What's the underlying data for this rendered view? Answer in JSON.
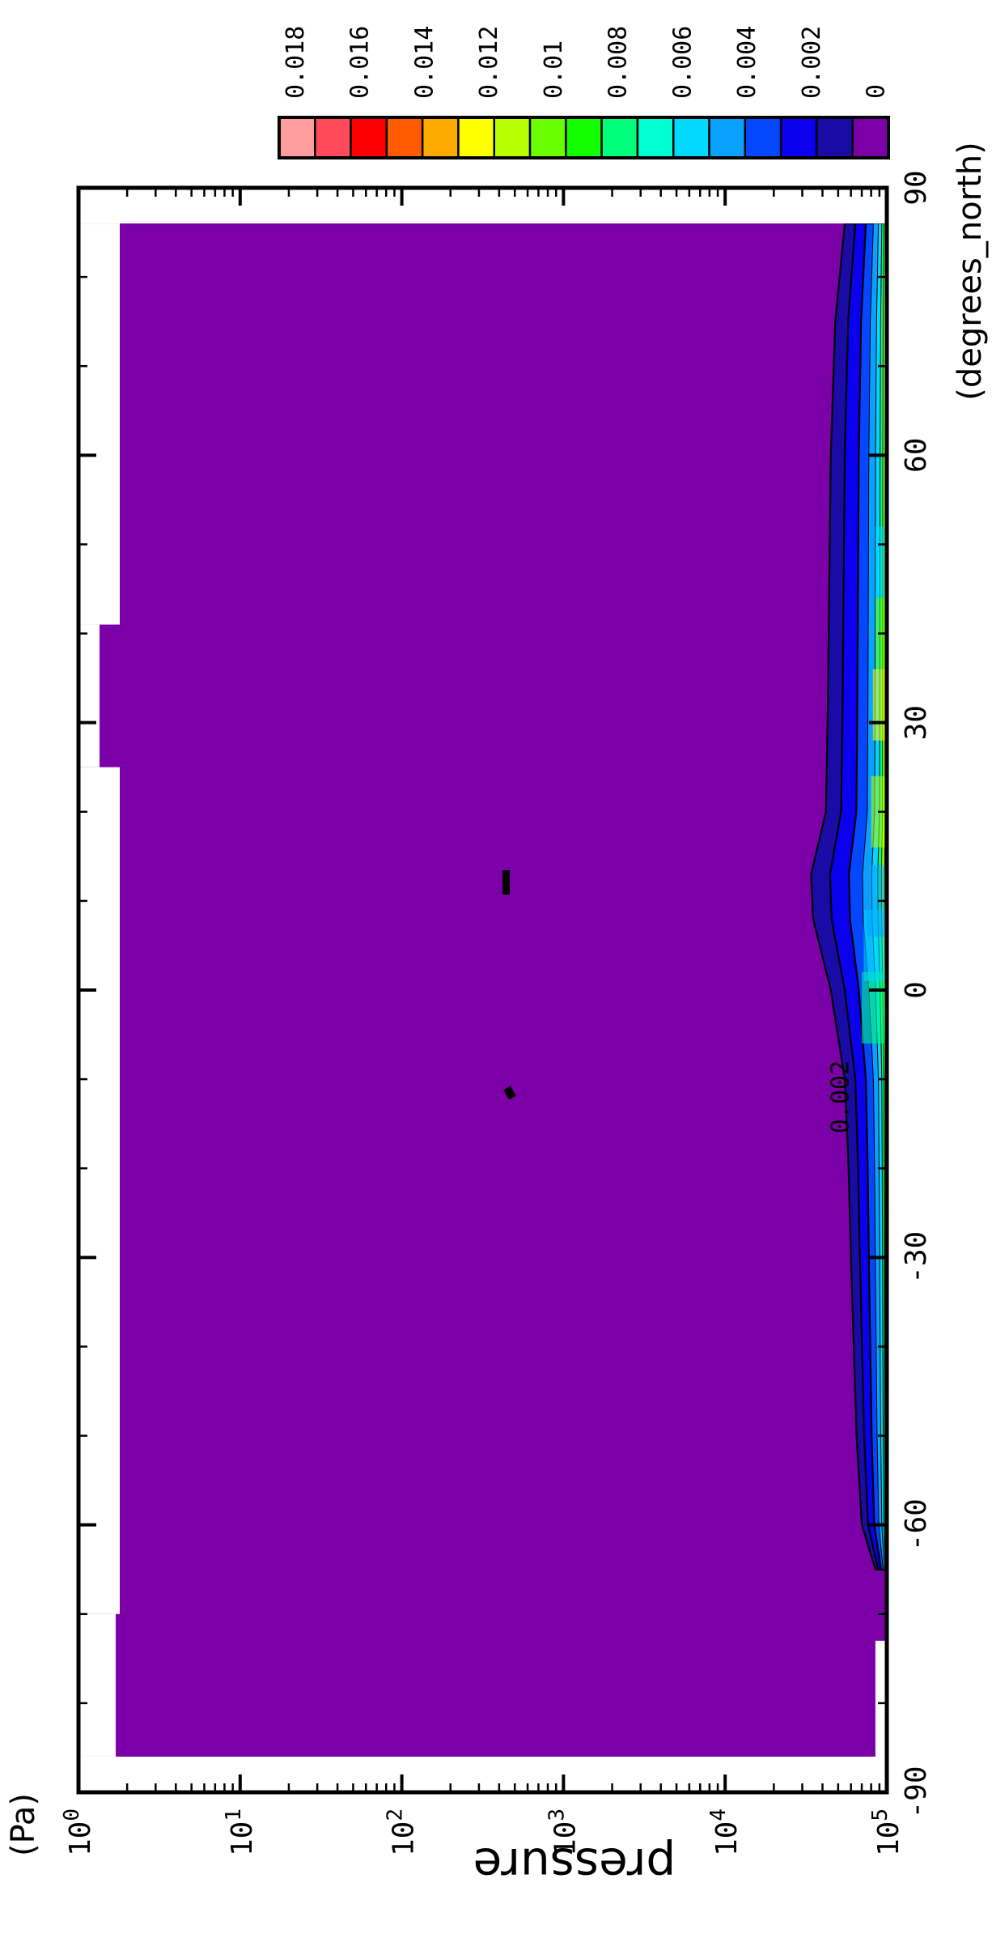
{
  "chart_data": {
    "type": "heatmap",
    "title": "",
    "xlabel": "pressure",
    "x_units": "(Pa)",
    "ylabel": "",
    "y_units": "(degrees_north)",
    "x_scale": "log",
    "xlim": [
      1,
      100000
    ],
    "ylim": [
      -90,
      90
    ],
    "x_ticks": [
      {
        "value": 1,
        "base": "10",
        "exp": "0"
      },
      {
        "value": 10,
        "base": "10",
        "exp": "1"
      },
      {
        "value": 100,
        "base": "10",
        "exp": "2"
      },
      {
        "value": 1000,
        "base": "10",
        "exp": "3"
      },
      {
        "value": 10000,
        "base": "10",
        "exp": "4"
      },
      {
        "value": 100000,
        "base": "10",
        "exp": "5"
      }
    ],
    "y_ticks": [
      "-90",
      "-60",
      "-30",
      "0",
      "30",
      "60",
      "90"
    ],
    "y_tick_values": [
      -90,
      -60,
      -30,
      0,
      30,
      60,
      90
    ],
    "colorbar": {
      "levels": [
        "0",
        "0.002",
        "0.004",
        "0.006",
        "0.008",
        "0.01",
        "0.012",
        "0.014",
        "0.016",
        "0.018"
      ],
      "colors": [
        "#7b00a8",
        "#1a0aa6",
        "#0a00ee",
        "#0546ff",
        "#0aa0ff",
        "#00d8ff",
        "#00ffd2",
        "#00ff7a",
        "#11ff00",
        "#6bff00",
        "#b8ff00",
        "#ffff00",
        "#ffaa00",
        "#ff5a00",
        "#ff0000",
        "#ff4a5a",
        "#ff9c9c"
      ]
    },
    "contour_labels": [
      "0.002"
    ],
    "background_color": "#7b00a8",
    "moist_layer_top": [
      {
        "lat": -65,
        "p": 85000
      },
      {
        "lat": -60,
        "p": 70000
      },
      {
        "lat": -50,
        "p": 65000
      },
      {
        "lat": -30,
        "p": 60000
      },
      {
        "lat": -20,
        "p": 58000
      },
      {
        "lat": -10,
        "p": 55000
      },
      {
        "lat": 0,
        "p": 45000
      },
      {
        "lat": 8,
        "p": 35000
      },
      {
        "lat": 13,
        "p": 34000
      },
      {
        "lat": 20,
        "p": 42000
      },
      {
        "lat": 30,
        "p": 43000
      },
      {
        "lat": 45,
        "p": 44000
      },
      {
        "lat": 60,
        "p": 45000
      },
      {
        "lat": 75,
        "p": 48000
      },
      {
        "lat": 86,
        "p": 55000
      }
    ],
    "missing_regions": [
      {
        "lat_from": -90,
        "lat_to": -86,
        "p_from": 1,
        "p_to": 100000
      },
      {
        "lat_from": -86,
        "lat_to": -73,
        "p_from": 85000,
        "p_to": 100000
      },
      {
        "lat_from": -86,
        "lat_to": -70,
        "p_from": 1,
        "p_to": 1.7
      },
      {
        "lat_from": 25,
        "lat_to": 41,
        "p_from": 1,
        "p_to": 1.35
      },
      {
        "lat_from": -70,
        "lat_to": 25,
        "p_from": 1,
        "p_to": 1.8
      },
      {
        "lat_from": 41,
        "lat_to": 86,
        "p_from": 1,
        "p_to": 1.8
      },
      {
        "lat_from": 86,
        "lat_to": 90,
        "p_from": 1,
        "p_to": 100000
      }
    ]
  }
}
